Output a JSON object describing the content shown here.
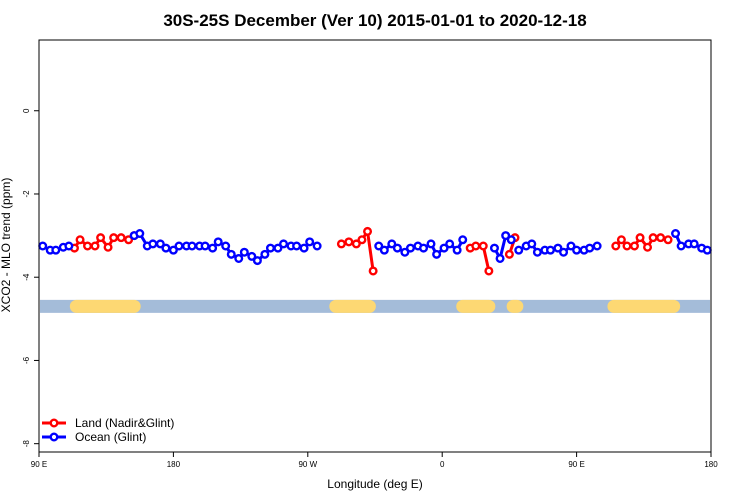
{
  "chart_data": {
    "type": "line",
    "title": "30S-25S December (Ver 10)   2015-01-01 to 2020-12-18",
    "xlabel": "Longitude (deg E)",
    "ylabel": "XCO2 - MLO trend (ppm)",
    "xlim": [
      90,
      450
    ],
    "ylim": [
      -8.2,
      1.7
    ],
    "x_ticks": [
      {
        "value": 90,
        "label": "90 E"
      },
      {
        "value": 162,
        "label": "180"
      },
      {
        "value": 234,
        "label": "90 W"
      },
      {
        "value": 306,
        "label": "0"
      },
      {
        "value": 378,
        "label": "90 E"
      },
      {
        "value": 450,
        "label": "180"
      }
    ],
    "y_ticks": [
      {
        "value": 0,
        "label": "0"
      },
      {
        "value": -2,
        "label": "-2"
      },
      {
        "value": -4,
        "label": "-4"
      },
      {
        "value": -6,
        "label": "-6"
      },
      {
        "value": -8,
        "label": "-8"
      }
    ],
    "grid": false,
    "legend": "bottom-left",
    "land_band": {
      "y": -4.7,
      "color_ocean": "#a4bcd9",
      "color_land": "#fdd873",
      "land_ranges": [
        [
          110,
          141
        ],
        [
          249,
          267
        ],
        [
          317,
          331
        ],
        [
          344,
          346
        ],
        [
          398,
          430
        ]
      ]
    },
    "series": [
      {
        "name": "Land (Nadir&Glint)",
        "color": "#ff0000",
        "segments": [
          [
            [
              109,
              -3.3
            ],
            [
              112,
              -3.1
            ],
            [
              116,
              -3.25
            ],
            [
              120,
              -3.25
            ],
            [
              123,
              -3.05
            ],
            [
              127,
              -3.28
            ],
            [
              130,
              -3.05
            ],
            [
              134,
              -3.05
            ],
            [
              138,
              -3.1
            ],
            [
              141,
              -3.0
            ]
          ],
          [
            [
              252,
              -3.2
            ],
            [
              256,
              -3.15
            ],
            [
              260,
              -3.2
            ],
            [
              263,
              -3.1
            ],
            [
              266,
              -2.9
            ],
            [
              269,
              -3.85
            ]
          ],
          [
            [
              321,
              -3.3
            ],
            [
              324,
              -3.25
            ],
            [
              328,
              -3.25
            ],
            [
              331,
              -3.85
            ]
          ],
          [
            [
              342,
              -3.45
            ],
            [
              345,
              -3.05
            ]
          ],
          [
            [
              399,
              -3.25
            ],
            [
              402,
              -3.1
            ],
            [
              405,
              -3.25
            ],
            [
              409,
              -3.25
            ],
            [
              412,
              -3.05
            ],
            [
              416,
              -3.28
            ],
            [
              419,
              -3.05
            ],
            [
              423,
              -3.05
            ],
            [
              427,
              -3.1
            ]
          ]
        ]
      },
      {
        "name": "Ocean (Glint)",
        "color": "#0000ff",
        "segments": [
          [
            [
              92,
              -3.25
            ],
            [
              96,
              -3.35
            ],
            [
              99,
              -3.35
            ],
            [
              103,
              -3.28
            ],
            [
              106,
              -3.25
            ]
          ],
          [
            [
              141,
              -3.0
            ]
          ],
          [
            [
              144,
              -2.95
            ],
            [
              148,
              -3.25
            ],
            [
              151,
              -3.2
            ],
            [
              155,
              -3.2
            ],
            [
              158,
              -3.3
            ],
            [
              162,
              -3.35
            ],
            [
              165,
              -3.25
            ],
            [
              169,
              -3.25
            ],
            [
              172,
              -3.25
            ],
            [
              176,
              -3.25
            ],
            [
              179,
              -3.25
            ],
            [
              183,
              -3.3
            ],
            [
              186,
              -3.15
            ],
            [
              190,
              -3.25
            ],
            [
              193,
              -3.45
            ],
            [
              197,
              -3.55
            ],
            [
              200,
              -3.4
            ],
            [
              204,
              -3.5
            ],
            [
              207,
              -3.6
            ],
            [
              211,
              -3.45
            ],
            [
              214,
              -3.3
            ],
            [
              218,
              -3.3
            ],
            [
              221,
              -3.2
            ],
            [
              225,
              -3.25
            ],
            [
              228,
              -3.25
            ],
            [
              232,
              -3.3
            ],
            [
              235,
              -3.15
            ],
            [
              239,
              -3.25
            ]
          ],
          [
            [
              272,
              -3.25
            ],
            [
              275,
              -3.35
            ],
            [
              279,
              -3.2
            ],
            [
              282,
              -3.3
            ],
            [
              286,
              -3.4
            ],
            [
              289,
              -3.3
            ],
            [
              293,
              -3.25
            ],
            [
              296,
              -3.3
            ],
            [
              300,
              -3.2
            ],
            [
              303,
              -3.45
            ],
            [
              307,
              -3.3
            ],
            [
              310,
              -3.2
            ],
            [
              314,
              -3.35
            ],
            [
              317,
              -3.1
            ]
          ],
          [
            [
              334,
              -3.3
            ],
            [
              337,
              -3.55
            ],
            [
              340,
              -3.0
            ],
            [
              343,
              -3.1
            ]
          ],
          [
            [
              347,
              -3.35
            ],
            [
              351,
              -3.25
            ],
            [
              354,
              -3.2
            ],
            [
              357,
              -3.4
            ],
            [
              361,
              -3.35
            ],
            [
              364,
              -3.35
            ],
            [
              368,
              -3.3
            ],
            [
              371,
              -3.4
            ],
            [
              375,
              -3.25
            ],
            [
              378,
              -3.35
            ],
            [
              382,
              -3.35
            ],
            [
              385,
              -3.3
            ],
            [
              389,
              -3.25
            ]
          ],
          [
            [
              431,
              -2.95
            ],
            [
              434,
              -3.25
            ],
            [
              438,
              -3.2
            ],
            [
              441,
              -3.2
            ],
            [
              445,
              -3.3
            ],
            [
              448,
              -3.35
            ]
          ]
        ]
      }
    ]
  }
}
